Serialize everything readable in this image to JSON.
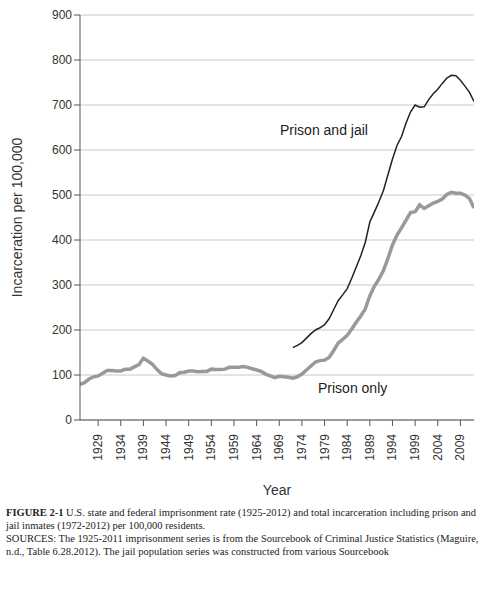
{
  "chart_data": {
    "type": "line",
    "x_label": "Year",
    "y_label": "Incarceration per 100,000",
    "x": [
      1925,
      1926,
      1927,
      1928,
      1929,
      1930,
      1931,
      1932,
      1933,
      1934,
      1935,
      1936,
      1937,
      1938,
      1939,
      1940,
      1941,
      1942,
      1943,
      1944,
      1945,
      1946,
      1947,
      1948,
      1949,
      1950,
      1951,
      1952,
      1953,
      1954,
      1955,
      1956,
      1957,
      1958,
      1959,
      1960,
      1961,
      1962,
      1963,
      1964,
      1965,
      1966,
      1967,
      1968,
      1969,
      1970,
      1971,
      1972,
      1973,
      1974,
      1975,
      1976,
      1977,
      1978,
      1979,
      1980,
      1981,
      1982,
      1983,
      1984,
      1985,
      1986,
      1987,
      1988,
      1989,
      1990,
      1991,
      1992,
      1993,
      1994,
      1995,
      1996,
      1997,
      1998,
      1999,
      2000,
      2001,
      2002,
      2003,
      2004,
      2005,
      2006,
      2007,
      2008,
      2009,
      2010,
      2011,
      2012
    ],
    "series": [
      {
        "name": "Prison and jail",
        "color": "#222222",
        "line_style": "solid",
        "marker": "none",
        "values": [
          null,
          null,
          null,
          null,
          null,
          null,
          null,
          null,
          null,
          null,
          null,
          null,
          null,
          null,
          null,
          null,
          null,
          null,
          null,
          null,
          null,
          null,
          null,
          null,
          null,
          null,
          null,
          null,
          null,
          null,
          null,
          null,
          null,
          null,
          null,
          null,
          null,
          null,
          null,
          null,
          null,
          null,
          null,
          null,
          null,
          null,
          null,
          161,
          166,
          172,
          182,
          192,
          200,
          205,
          212,
          225,
          245,
          265,
          278,
          292,
          315,
          340,
          365,
          395,
          440,
          462,
          485,
          510,
          545,
          580,
          610,
          630,
          660,
          685,
          700,
          695,
          696,
          712,
          725,
          735,
          748,
          760,
          766,
          765,
          755,
          742,
          728,
          708
        ]
      },
      {
        "name": "Prison only",
        "color": "#999999",
        "line_style": "solid",
        "marker": "none",
        "values": [
          79,
          83,
          91,
          96,
          98,
          104,
          110,
          110,
          109,
          109,
          113,
          113,
          118,
          123,
          137,
          131,
          124,
          112,
          103,
          100,
          98,
          99,
          105,
          106,
          109,
          109,
          107,
          108,
          108,
          113,
          112,
          112,
          113,
          117,
          117,
          117,
          119,
          117,
          114,
          111,
          108,
          102,
          98,
          94,
          97,
          96,
          95,
          93,
          96,
          102,
          111,
          120,
          129,
          132,
          133,
          139,
          154,
          171,
          179,
          188,
          202,
          217,
          231,
          247,
          276,
          297,
          313,
          332,
          359,
          389,
          411,
          427,
          444,
          461,
          463,
          478,
          470,
          476,
          482,
          486,
          491,
          501,
          506,
          504,
          504,
          500,
          492,
          471
        ]
      }
    ],
    "xlim": [
      1925,
      2012
    ],
    "xticks": [
      1929,
      1934,
      1939,
      1944,
      1949,
      1954,
      1959,
      1964,
      1969,
      1974,
      1979,
      1984,
      1989,
      1994,
      1999,
      2004,
      2009
    ],
    "ylim": [
      0,
      900
    ],
    "yticks": [
      0,
      100,
      200,
      300,
      400,
      500,
      600,
      700,
      800,
      900
    ],
    "grid": true,
    "legend": "none",
    "figure_label": "FIGURE 2-1",
    "caption": "U.S. state and federal imprisonment rate (1925-2012) and total incarceration including prison and jail inmates (1972-2012) per 100,000 residents.",
    "sources": "SOURCES: The 1925-2011 imprisonment series is from the Sourcebook of Criminal Justice Statistics (Maguire, n.d., Table 6.28.2012). The jail population series was constructed from various Sourcebook"
  }
}
